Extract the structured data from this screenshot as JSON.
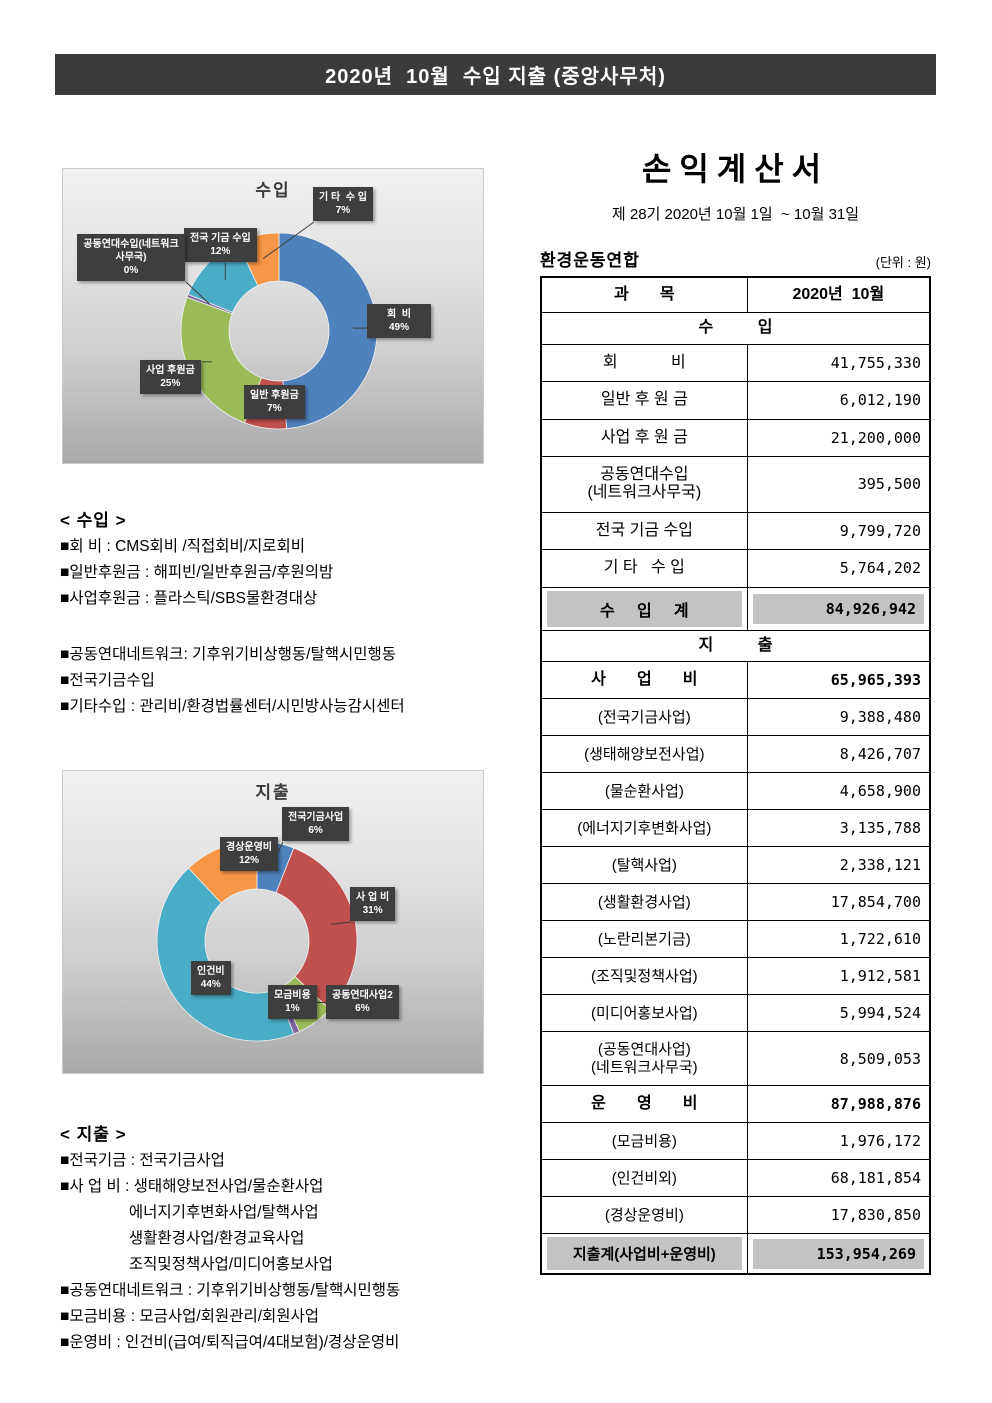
{
  "header": {
    "title": "2020년  10월  수입 지출 (중앙사무처)"
  },
  "income_section": {
    "heading": "< 수입 >",
    "items": [
      "■회 비 : CMS회비 /직접회비/지로회비",
      "■일반후원금 : 해피빈/일반후원금/후원의밤",
      "■사업후원금 : 플라스틱/SBS물환경대상",
      "■공동연대네트워크: 기후위기비상행동/탈핵시민행동",
      "■전국기금수입",
      "■기타수입 : 관리비/환경법률센터/시민방사능감시센터"
    ]
  },
  "expense_section": {
    "heading": "< 지출 >",
    "items": [
      "■전국기금 : 전국기금사업",
      "■사 업 비 : 생태해양보전사업/물순환사업",
      "                에너지기후변화사업/탈핵사업",
      "                생활환경사업/환경교육사업",
      "                조직및정책사업/미디어홍보사업",
      "■공동연대네트워크 : 기후위기비상행동/탈핵시민행동",
      "■모금비용 : 모금사업/회원관리/회원사업",
      "■운영비 : 인건비(급여/퇴직급여/4대보험)/경상운영비"
    ]
  },
  "statement": {
    "title": "손익계산서",
    "period": "제 28기 2020년 10월 1일  ~ 10월 31일",
    "org": "환경운동연합",
    "unit": "(단위 : 원)",
    "table": {
      "col1": "과       목",
      "col2": "2020년  10월",
      "rows": [
        {
          "label": "수          입"
        },
        {
          "label": "회            비",
          "value": "41,755,330"
        },
        {
          "label": "일반 후 원 금",
          "value": "6,012,190"
        },
        {
          "label": "사업 후 원 금",
          "value": "21,200,000"
        },
        {
          "label": "공동연대수입\n(네트워크사무국)",
          "value": "395,500"
        },
        {
          "label": "전국 기금 수입",
          "value": "9,799,720"
        },
        {
          "label": "기 타   수 입",
          "value": "5,764,202"
        },
        {
          "label": "수     입     계",
          "value": "84,926,942"
        },
        {
          "label": "지          출"
        },
        {
          "label": "사       업       비",
          "value": "65,965,393"
        },
        {
          "label": "(전국기금사업)",
          "value": "9,388,480"
        },
        {
          "label": "(생태해양보전사업)",
          "value": "8,426,707"
        },
        {
          "label": "(물순환사업)",
          "value": "4,658,900"
        },
        {
          "label": "(에너지기후변화사업)",
          "value": "3,135,788"
        },
        {
          "label": "(탈핵사업)",
          "value": "2,338,121"
        },
        {
          "label": "(생활환경사업)",
          "value": "17,854,700"
        },
        {
          "label": "(노란리본기금)",
          "value": "1,722,610"
        },
        {
          "label": "(조직및정책사업)",
          "value": "1,912,581"
        },
        {
          "label": "(미디어홍보사업)",
          "value": "5,994,524"
        },
        {
          "label": "(공동연대사업)\n(네트워크사무국)",
          "value": "8,509,053"
        },
        {
          "label": "운       영       비",
          "value": "87,988,876"
        },
        {
          "label": "(모금비용)",
          "value": "1,976,172"
        },
        {
          "label": "(인건비외)",
          "value": "68,181,854"
        },
        {
          "label": "(경상운영비)",
          "value": "17,830,850"
        },
        {
          "label": "지출계(사업비+운영비)",
          "value": "153,954,269"
        }
      ]
    }
  },
  "chart_data": [
    {
      "type": "pie",
      "variant": "donut",
      "title": "수입",
      "legend_position": "none",
      "background": "gray-gradient",
      "segments": [
        {
          "label": "회  비",
          "pct": 49,
          "pct_label": "49%",
          "color": "#4F81BD"
        },
        {
          "label": "일반 후원금",
          "pct": 7,
          "pct_label": "7%",
          "color": "#C0504D"
        },
        {
          "label": "사업 후원금",
          "pct": 25,
          "pct_label": "25%",
          "color": "#9BBB59"
        },
        {
          "label": "공동연대수입(네트워크사무국)",
          "pct": 0,
          "pct_label": "0%",
          "color": "#8064A2"
        },
        {
          "label": "전국 기금 수입",
          "pct": 12,
          "pct_label": "12%",
          "color": "#4BACC6"
        },
        {
          "label": "기 타  수 입",
          "pct": 7,
          "pct_label": "7%",
          "color": "#F79646"
        }
      ]
    },
    {
      "type": "pie",
      "variant": "donut",
      "title": "지출",
      "legend_position": "none",
      "background": "gray-gradient",
      "segments": [
        {
          "label": "전국기금사업",
          "pct": 6,
          "pct_label": "6%",
          "color": "#4F81BD"
        },
        {
          "label": "사 업 비",
          "pct": 31,
          "pct_label": "31%",
          "color": "#C0504D"
        },
        {
          "label": "공동연대사업2",
          "pct": 6,
          "pct_label": "6%",
          "color": "#9BBB59"
        },
        {
          "label": "모금비용",
          "pct": 1,
          "pct_label": "1%",
          "color": "#8064A2"
        },
        {
          "label": "인건비",
          "pct": 44,
          "pct_label": "44%",
          "color": "#4BACC6"
        },
        {
          "label": "경상운영비",
          "pct": 12,
          "pct_label": "12%",
          "color": "#F79646"
        }
      ]
    }
  ]
}
